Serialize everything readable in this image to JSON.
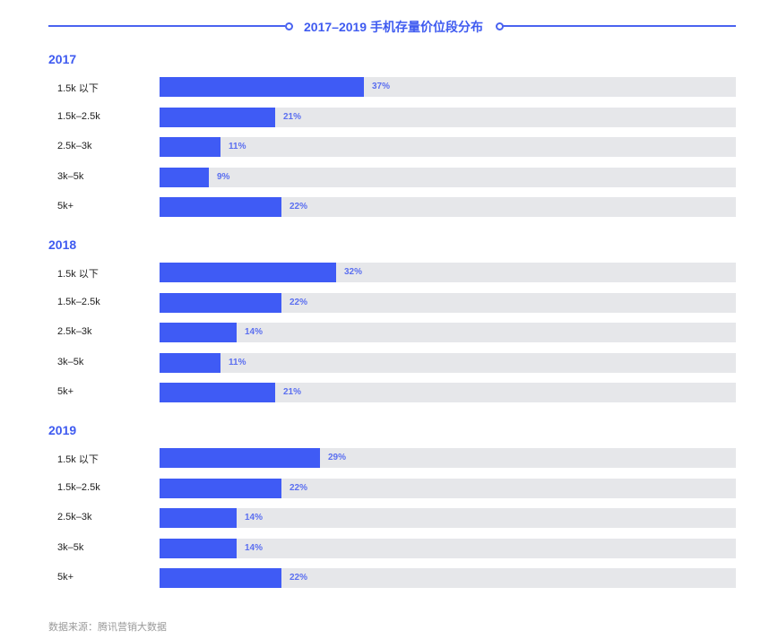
{
  "title": "2017–2019 手机存量价位段分布",
  "source": "数据来源：腾讯营销大数据",
  "colors": {
    "accent": "#3f5bf5",
    "track": "#e6e7ea",
    "label_value": "#5b6ff0",
    "source_text": "#9a9a9a"
  },
  "chart_data": {
    "type": "bar",
    "orientation": "horizontal",
    "title": "2017–2019 手机存量价位段分布",
    "categories": [
      "1.5k 以下",
      "1.5k–2.5k",
      "2.5k–3k",
      "3k–5k",
      "5k+"
    ],
    "series": [
      {
        "name": "2017",
        "values": [
          37,
          21,
          11,
          9,
          22
        ]
      },
      {
        "name": "2018",
        "values": [
          32,
          22,
          14,
          11,
          21
        ]
      },
      {
        "name": "2019",
        "values": [
          29,
          22,
          14,
          14,
          22
        ]
      }
    ],
    "unit": "%",
    "xlabel": "",
    "ylabel": "",
    "grid": false,
    "source": "数据来源：腾讯营销大数据"
  },
  "groups": [
    {
      "year": "2017",
      "rows": [
        {
          "label": "1.5k 以下",
          "value": 37,
          "text": "37%"
        },
        {
          "label": "1.5k–2.5k",
          "value": 21,
          "text": "21%"
        },
        {
          "label": "2.5k–3k",
          "value": 11,
          "text": "11%"
        },
        {
          "label": "3k–5k",
          "value": 9,
          "text": "9%"
        },
        {
          "label": "5k+",
          "value": 22,
          "text": "22%"
        }
      ]
    },
    {
      "year": "2018",
      "rows": [
        {
          "label": "1.5k 以下",
          "value": 32,
          "text": "32%"
        },
        {
          "label": "1.5k–2.5k",
          "value": 22,
          "text": "22%"
        },
        {
          "label": "2.5k–3k",
          "value": 14,
          "text": "14%"
        },
        {
          "label": "3k–5k",
          "value": 11,
          "text": "11%"
        },
        {
          "label": "5k+",
          "value": 21,
          "text": "21%"
        }
      ]
    },
    {
      "year": "2019",
      "rows": [
        {
          "label": "1.5k 以下",
          "value": 29,
          "text": "29%"
        },
        {
          "label": "1.5k–2.5k",
          "value": 22,
          "text": "22%"
        },
        {
          "label": "2.5k–3k",
          "value": 14,
          "text": "14%"
        },
        {
          "label": "3k–5k",
          "value": 14,
          "text": "14%"
        },
        {
          "label": "5k+",
          "value": 22,
          "text": "22%"
        }
      ]
    }
  ]
}
